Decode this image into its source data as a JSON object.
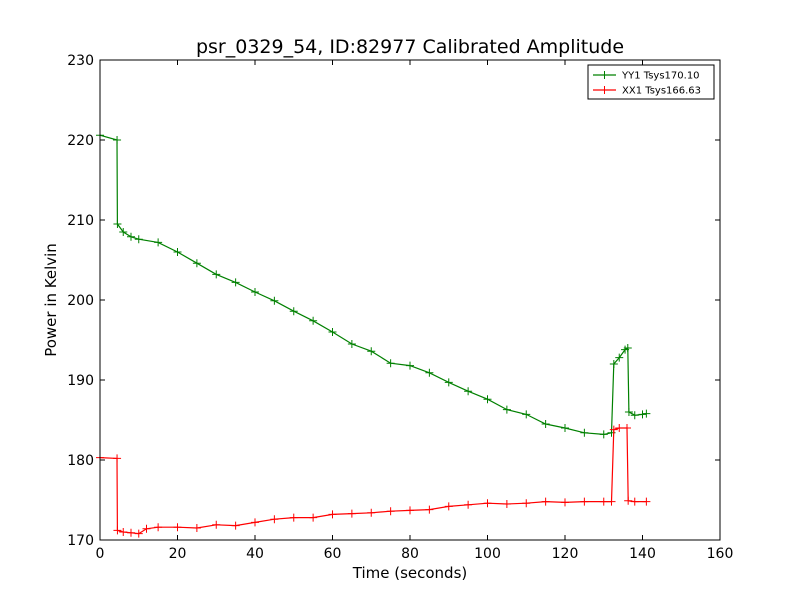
{
  "chart_data": {
    "type": "line",
    "title": "psr_0329_54, ID:82977 Calibrated Amplitude",
    "xlabel": "Time (seconds)",
    "ylabel": "Power in Kelvin",
    "xlim": [
      0,
      160
    ],
    "ylim": [
      170,
      230
    ],
    "xticks": [
      "0",
      "20",
      "40",
      "60",
      "80",
      "100",
      "120",
      "140",
      "160"
    ],
    "yticks": [
      "170",
      "180",
      "190",
      "200",
      "210",
      "220",
      "230"
    ],
    "grid": false,
    "legend_position": "top-right",
    "series": [
      {
        "name": "YY1 Tsys170.10",
        "color": "#008000",
        "marker": "+",
        "points": [
          [
            0,
            220.6
          ],
          [
            4.4,
            220.0
          ],
          [
            4.5,
            209.5
          ],
          [
            6,
            208.5
          ],
          [
            8,
            207.9
          ],
          [
            10,
            207.6
          ],
          [
            15,
            207.2
          ],
          [
            20,
            206.0
          ],
          [
            25,
            204.6
          ],
          [
            30,
            203.2
          ],
          [
            35,
            202.2
          ],
          [
            40,
            201.0
          ],
          [
            45,
            199.9
          ],
          [
            50,
            198.6
          ],
          [
            55,
            197.4
          ],
          [
            60,
            196.0
          ],
          [
            65,
            194.5
          ],
          [
            70,
            193.6
          ],
          [
            75,
            192.1
          ],
          [
            80,
            191.8
          ],
          [
            85,
            190.9
          ],
          [
            90,
            189.7
          ],
          [
            95,
            188.6
          ],
          [
            100,
            187.6
          ],
          [
            105,
            186.3
          ],
          [
            110,
            185.7
          ],
          [
            115,
            184.5
          ],
          [
            120,
            184.0
          ],
          [
            125,
            183.4
          ],
          [
            130,
            183.2
          ],
          [
            132,
            183.4
          ],
          [
            132.6,
            192.0
          ],
          [
            134,
            192.8
          ],
          [
            135.5,
            193.8
          ],
          [
            136.2,
            194.0
          ],
          [
            136.5,
            186.0
          ],
          [
            138,
            185.6
          ],
          [
            140,
            185.7
          ],
          [
            141,
            185.8
          ]
        ]
      },
      {
        "name": "XX1 Tsys166.63",
        "color": "#ff0000",
        "marker": "+",
        "points": [
          [
            0,
            180.3
          ],
          [
            4.4,
            180.2
          ],
          [
            4.5,
            171.2
          ],
          [
            6,
            171.0
          ],
          [
            8,
            170.9
          ],
          [
            10,
            170.8
          ],
          [
            12,
            171.4
          ],
          [
            15,
            171.6
          ],
          [
            20,
            171.6
          ],
          [
            25,
            171.5
          ],
          [
            30,
            171.9
          ],
          [
            35,
            171.8
          ],
          [
            40,
            172.2
          ],
          [
            45,
            172.6
          ],
          [
            50,
            172.8
          ],
          [
            55,
            172.8
          ],
          [
            60,
            173.2
          ],
          [
            65,
            173.3
          ],
          [
            70,
            173.4
          ],
          [
            75,
            173.6
          ],
          [
            80,
            173.7
          ],
          [
            85,
            173.8
          ],
          [
            90,
            174.2
          ],
          [
            95,
            174.4
          ],
          [
            100,
            174.6
          ],
          [
            105,
            174.5
          ],
          [
            110,
            174.6
          ],
          [
            115,
            174.8
          ],
          [
            120,
            174.7
          ],
          [
            125,
            174.8
          ],
          [
            130,
            174.8
          ],
          [
            132,
            174.8
          ],
          [
            132.6,
            183.8
          ],
          [
            134,
            184.0
          ],
          [
            136,
            184.0
          ],
          [
            136.3,
            174.9
          ],
          [
            138,
            174.8
          ],
          [
            141,
            174.8
          ]
        ]
      }
    ]
  }
}
